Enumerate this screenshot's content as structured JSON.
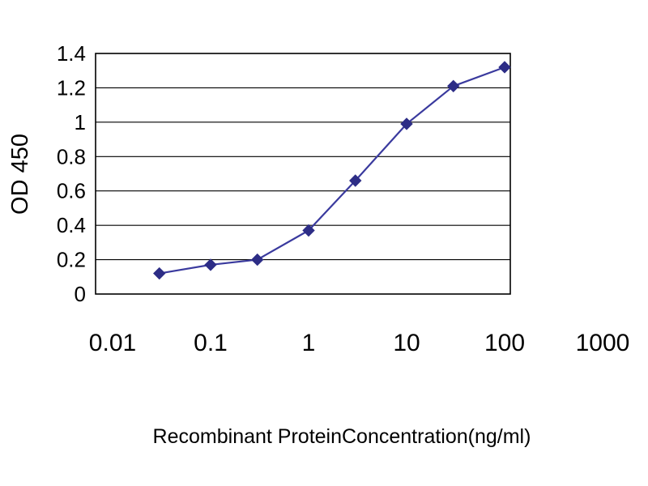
{
  "chart_data": {
    "type": "line",
    "title": "",
    "xlabel": "Recombinant ProteinConcentration(ng/ml)",
    "ylabel": "OD 450",
    "xscale": "log",
    "x": [
      0.03,
      0.1,
      0.3,
      1,
      3,
      10,
      30,
      100
    ],
    "y": [
      0.12,
      0.17,
      0.2,
      0.37,
      0.66,
      0.99,
      1.21,
      1.32
    ],
    "xlim": [
      0.01,
      1000
    ],
    "ylim": [
      0,
      1.4
    ],
    "x_tick_labels": [
      "0.01",
      "0.1",
      "1",
      "10",
      "100",
      "1000"
    ],
    "x_tick_values": [
      0.01,
      0.1,
      1,
      10,
      100,
      1000
    ],
    "y_tick_labels": [
      "0",
      "0.2",
      "0.4",
      "0.6",
      "0.8",
      "1",
      "1.2",
      "1.4"
    ],
    "y_tick_values": [
      0,
      0.2,
      0.4,
      0.6,
      0.8,
      1,
      1.2,
      1.4
    ],
    "grid": "horizontal",
    "legend": "none",
    "marker": "diamond",
    "line_color": "#3a3a9e",
    "marker_color": "#2d2d86",
    "grid_color": "#000000",
    "axis_color": "#000000",
    "background": "#ffffff"
  }
}
